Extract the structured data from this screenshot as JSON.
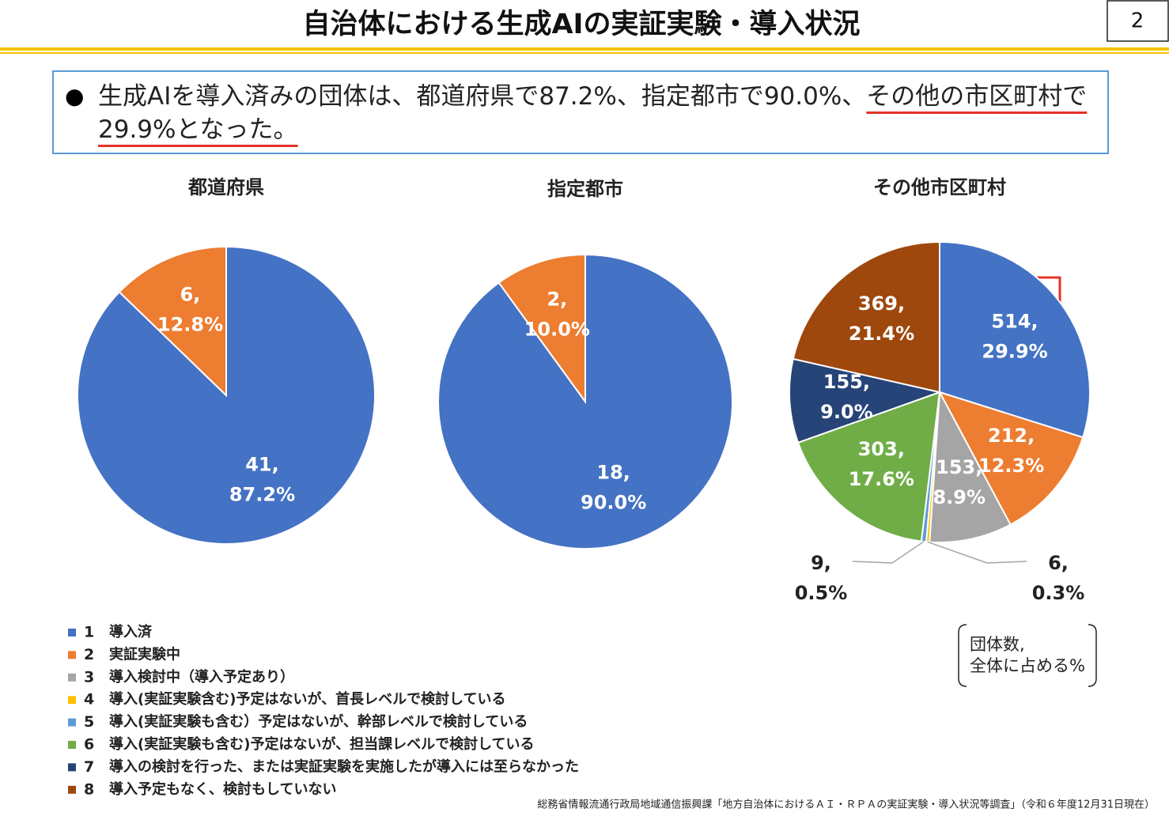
{
  "header": {
    "title": "自治体における生成AIの実証実験・導入状況",
    "page_number": 2
  },
  "summary": {
    "text": "生成AIを導入済みの団体は、都道府県で87.2%、指定都市で90.0%、",
    "highlight": "その他の市区町村で29.9%となった。"
  },
  "chart_data": [
    {
      "type": "pie",
      "title": "都道府県",
      "values": [
        41,
        6
      ],
      "value_labels": [
        "41,",
        "6,"
      ],
      "percent_labels": [
        "87.2%",
        "12.8%"
      ],
      "colors": [
        "#4472c4",
        "#ed7d31"
      ]
    },
    {
      "type": "pie",
      "title": "指定都市",
      "values": [
        18,
        2
      ],
      "value_labels": [
        "18,",
        "2,"
      ],
      "percent_labels": [
        "90.0%",
        "10.0%"
      ],
      "colors": [
        "#4472c4",
        "#ed7d31"
      ]
    },
    {
      "type": "pie",
      "title": "その他市区町村",
      "values": [
        514,
        212,
        153,
        6,
        9,
        303,
        155,
        369
      ],
      "value_labels": [
        "514,",
        "212,",
        "153,",
        "6,",
        "9,",
        "303,",
        "155,",
        "369,"
      ],
      "percent_labels": [
        "29.9%",
        "12.3%",
        "8.9%",
        "0.3%",
        "0.5%",
        "17.6%",
        "9.0%",
        "21.4%"
      ],
      "colors": [
        "#4472c4",
        "#ed7d31",
        "#a5a5a5",
        "#ffc000",
        "#5b9bd5",
        "#70ad47",
        "#264478",
        "#9e480e"
      ]
    }
  ],
  "legend": [
    {
      "number": 1,
      "label": "導入済",
      "color": "#4472c4"
    },
    {
      "number": 2,
      "label": "実証実験中",
      "color": "#ed7d31"
    },
    {
      "number": 3,
      "label": "導入検討中（導入予定あり）",
      "color": "#a5a5a5"
    },
    {
      "number": 4,
      "label": "導入(実証実験含む)予定はないが、首長レベルで検討している",
      "color": "#ffc000"
    },
    {
      "number": 5,
      "label": "導入(実証実験も含む）予定はないが、幹部レベルで検討している",
      "color": "#5b9bd5"
    },
    {
      "number": 6,
      "label": "導入(実証実験も含む)予定はないが、担当課レベルで検討している",
      "color": "#70ad47"
    },
    {
      "number": 7,
      "label": "導入の検討を行った、または実証実験を実施したが導入には至らなかった",
      "color": "#264478"
    },
    {
      "number": 8,
      "label": "導入予定もなく、検討もしていない",
      "color": "#9e480e"
    }
  ],
  "note": {
    "lines": [
      "団体数,",
      "全体に占める%"
    ]
  },
  "source": "総務省情報流通行政局地域通信振興課「地方自治体におけるＡＩ・ＲＰＡの実証実験・導入状況等調査」（令和６年度12月31日現在）"
}
